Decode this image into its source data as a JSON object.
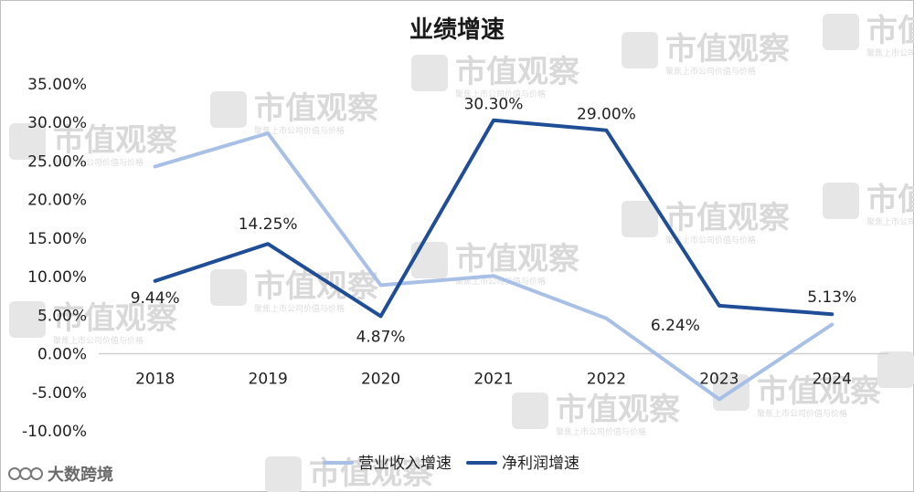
{
  "chart_data": {
    "type": "line",
    "title": "业绩增速",
    "categories": [
      "2018",
      "2019",
      "2020",
      "2021",
      "2022",
      "2023",
      "2024"
    ],
    "ylim": [
      -10,
      35
    ],
    "yticks": [
      35,
      30,
      25,
      20,
      15,
      10,
      5,
      0,
      -5,
      -10
    ],
    "ytick_labels": [
      "35.00%",
      "30.00%",
      "25.00%",
      "20.00%",
      "15.00%",
      "10.00%",
      "5.00%",
      "0.00%",
      "-5.00%",
      "-10.00%"
    ],
    "grid": false,
    "legend_position": "bottom",
    "series": [
      {
        "name": "营业收入增速",
        "color": "#a9c0e6",
        "values": [
          24.3,
          28.6,
          8.9,
          10.1,
          4.6,
          -5.9,
          3.8
        ],
        "data_labels": []
      },
      {
        "name": "净利润增速",
        "color": "#1f4e97",
        "values": [
          9.44,
          14.25,
          4.87,
          30.3,
          29.0,
          6.24,
          5.13
        ],
        "data_labels": [
          "9.44%",
          "14.25%",
          "4.87%",
          "30.30%",
          "29.00%",
          "6.24%",
          "5.13%"
        ]
      }
    ]
  },
  "watermark": {
    "text": "市值观察",
    "subtext": "聚焦上市公司价值与价格",
    "icon": "tv-logo-icon"
  },
  "corner_logo": {
    "text": "大数跨境",
    "icon": "ceo-logo-icon"
  }
}
